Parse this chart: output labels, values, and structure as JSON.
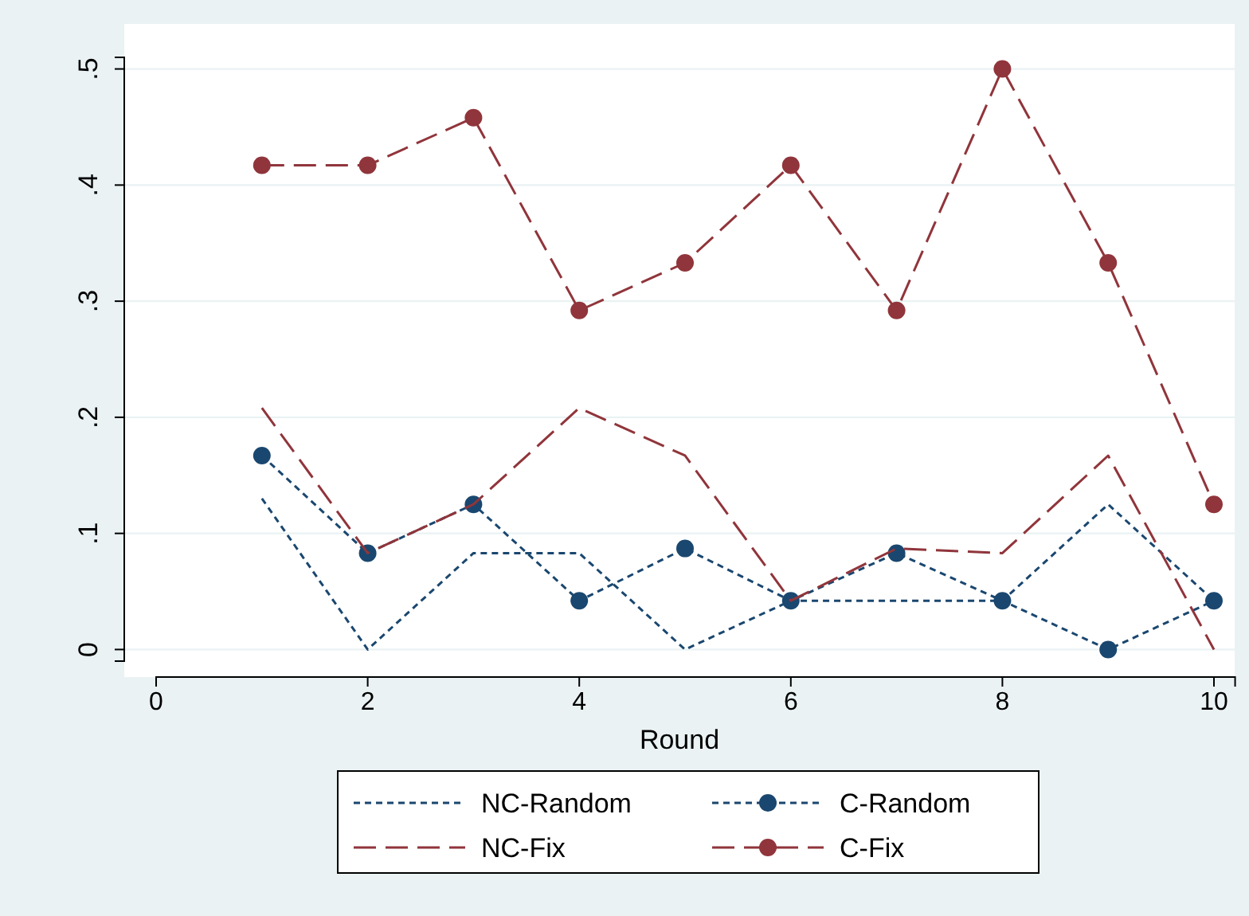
{
  "chart_data": {
    "type": "line",
    "xlabel": "Round",
    "x": [
      1,
      2,
      3,
      4,
      5,
      6,
      7,
      8,
      9,
      10
    ],
    "xlim": [
      0,
      10.2
    ],
    "xticks": [
      0,
      2,
      4,
      6,
      8,
      10
    ],
    "ylim": [
      -0.01,
      0.51
    ],
    "yticks": [
      {
        "value": 0,
        "label": "0"
      },
      {
        "value": 0.1,
        "label": ".1"
      },
      {
        "value": 0.2,
        "label": ".2"
      },
      {
        "value": 0.3,
        "label": ".3"
      },
      {
        "value": 0.4,
        "label": ".4"
      },
      {
        "value": 0.5,
        "label": ".5"
      }
    ],
    "grid": "y",
    "legend": "bottom",
    "series": [
      {
        "name": "NC-Random",
        "color": "#1a476f",
        "line_style": "dotted",
        "marker": "none",
        "values": [
          0.13,
          0,
          0.083,
          0.083,
          0,
          0.042,
          0.042,
          0.042,
          0.125,
          0.042
        ]
      },
      {
        "name": "C-Random",
        "color": "#1a476f",
        "line_style": "dotted",
        "marker": "circle",
        "values": [
          0.167,
          0.083,
          0.125,
          0.042,
          0.087,
          0.042,
          0.083,
          0.042,
          0,
          0.042
        ]
      },
      {
        "name": "NC-Fix",
        "color": "#90353b",
        "line_style": "dashed",
        "marker": "none",
        "values": [
          0.208,
          0.083,
          0.125,
          0.208,
          0.167,
          0.042,
          0.087,
          0.083,
          0.167,
          0
        ]
      },
      {
        "name": "C-Fix",
        "color": "#90353b",
        "line_style": "dashed",
        "marker": "circle",
        "values": [
          0.417,
          0.417,
          0.458,
          0.292,
          0.333,
          0.417,
          0.292,
          0.5,
          0.333,
          0.125
        ]
      }
    ]
  }
}
